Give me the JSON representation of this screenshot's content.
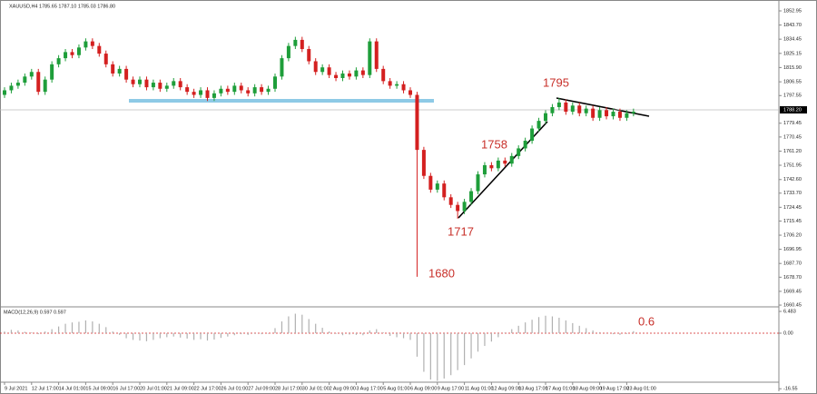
{
  "chart_data": [
    {
      "type": "candlestick",
      "title": "XAUUSD,H4 1785.65 1787.10 1785.03 1786.80",
      "categories": [
        "9 Jul 2021",
        null,
        null,
        null,
        "12 Jul 17:00",
        null,
        null,
        null,
        "14 Jul 01:00",
        null,
        null,
        null,
        "15 Jul 09:00",
        null,
        null,
        null,
        "16 Jul 17:00",
        null,
        null,
        null,
        "20 Jul 01:00",
        null,
        null,
        null,
        "21 Jul 09:00",
        null,
        null,
        null,
        "22 Jul 17:00",
        null,
        null,
        null,
        "26 Jul 01:00",
        null,
        null,
        null,
        "27 Jul 09:00",
        null,
        null,
        null,
        "28 Jul 17:00",
        null,
        null,
        null,
        "30 Jul 01:00",
        null,
        null,
        null,
        "2 Aug 09:00",
        null,
        null,
        null,
        "3 Aug 17:00",
        null,
        null,
        null,
        "5 Aug 01:00",
        null,
        null,
        null,
        "6 Aug 09:00",
        null,
        null,
        null,
        "9 Aug 17:00",
        null,
        null,
        null,
        "11 Aug 01:00",
        null,
        null,
        null,
        "12 Aug 09:00",
        null,
        null,
        null,
        "13 Aug 17:00",
        null,
        null,
        null,
        "17 Aug 01:00",
        null,
        null,
        null,
        "18 Aug 09:00",
        null,
        null,
        null,
        "19 Aug 17:00",
        null,
        null,
        null,
        "23 Aug 01:00",
        null
      ],
      "open": [
        1798,
        1801,
        1804,
        1806,
        1810,
        1813,
        1800,
        1808,
        1818,
        1822,
        1826,
        1824,
        1829,
        1833,
        1830,
        1825,
        1818,
        1812,
        1815,
        1808,
        1805,
        1808,
        1803,
        1806,
        1802,
        1804,
        1807,
        1803,
        1800,
        1798,
        1801,
        1796,
        1799,
        1802,
        1800,
        1804,
        1801,
        1799,
        1803,
        1800,
        1802,
        1810,
        1822,
        1830,
        1834,
        1828,
        1820,
        1813,
        1816,
        1811,
        1809,
        1812,
        1810,
        1814,
        1811,
        1833,
        1815,
        1807,
        1804,
        1805,
        1801,
        1798,
        1762,
        1745,
        1736,
        1740,
        1731,
        1726,
        1722,
        1728,
        1735,
        1746,
        1752,
        1750,
        1755,
        1753,
        1758,
        1763,
        1768,
        1776,
        1781,
        1786,
        1790,
        1793,
        1787,
        1791,
        1786,
        1789,
        1783,
        1788,
        1784,
        1787,
        1783,
        1786
      ],
      "high": [
        1803,
        1806,
        1808,
        1812,
        1815,
        1815,
        1810,
        1820,
        1824,
        1828,
        1828,
        1831,
        1835,
        1835,
        1832,
        1827,
        1820,
        1817,
        1817,
        1810,
        1810,
        1810,
        1808,
        1808,
        1806,
        1809,
        1809,
        1805,
        1802,
        1803,
        1803,
        1801,
        1804,
        1804,
        1806,
        1806,
        1803,
        1805,
        1805,
        1804,
        1812,
        1824,
        1832,
        1836,
        1836,
        1830,
        1822,
        1818,
        1818,
        1813,
        1814,
        1814,
        1816,
        1816,
        1835,
        1835,
        1817,
        1809,
        1807,
        1807,
        1803,
        1800,
        1764,
        1747,
        1742,
        1742,
        1733,
        1728,
        1730,
        1737,
        1748,
        1754,
        1754,
        1757,
        1757,
        1760,
        1765,
        1770,
        1778,
        1783,
        1788,
        1792,
        1796,
        1795,
        1793,
        1793,
        1791,
        1791,
        1790,
        1790,
        1789,
        1789,
        1788,
        1789
      ],
      "low": [
        1796,
        1799,
        1802,
        1804,
        1808,
        1798,
        1798,
        1806,
        1816,
        1820,
        1822,
        1822,
        1827,
        1828,
        1823,
        1816,
        1810,
        1810,
        1806,
        1803,
        1803,
        1801,
        1801,
        1800,
        1800,
        1802,
        1801,
        1798,
        1796,
        1796,
        1794,
        1794,
        1797,
        1798,
        1798,
        1799,
        1797,
        1797,
        1798,
        1798,
        1800,
        1808,
        1820,
        1828,
        1826,
        1818,
        1811,
        1811,
        1809,
        1807,
        1807,
        1808,
        1808,
        1809,
        1809,
        1813,
        1805,
        1802,
        1802,
        1799,
        1796,
        1679,
        1743,
        1734,
        1734,
        1729,
        1724,
        1717,
        1720,
        1726,
        1733,
        1744,
        1748,
        1748,
        1751,
        1751,
        1756,
        1761,
        1766,
        1774,
        1779,
        1784,
        1788,
        1785,
        1785,
        1784,
        1784,
        1781,
        1781,
        1782,
        1782,
        1781,
        1781,
        1784
      ],
      "close": [
        1801,
        1804,
        1806,
        1810,
        1813,
        1800,
        1808,
        1818,
        1822,
        1826,
        1824,
        1829,
        1833,
        1830,
        1825,
        1818,
        1812,
        1815,
        1808,
        1805,
        1808,
        1803,
        1806,
        1802,
        1804,
        1807,
        1803,
        1800,
        1798,
        1801,
        1796,
        1799,
        1802,
        1800,
        1804,
        1801,
        1799,
        1803,
        1800,
        1802,
        1810,
        1822,
        1830,
        1834,
        1828,
        1820,
        1813,
        1816,
        1811,
        1809,
        1812,
        1810,
        1814,
        1811,
        1833,
        1815,
        1807,
        1804,
        1805,
        1801,
        1798,
        1762,
        1745,
        1736,
        1740,
        1731,
        1726,
        1722,
        1728,
        1735,
        1746,
        1752,
        1750,
        1755,
        1753,
        1758,
        1763,
        1768,
        1776,
        1781,
        1786,
        1790,
        1793,
        1787,
        1791,
        1786,
        1789,
        1783,
        1788,
        1784,
        1787,
        1783,
        1786,
        1787
      ],
      "up_color": "#1e9e3a",
      "down_color": "#d42020",
      "ylim": [
        1659.9,
        1858.3
      ],
      "yticks": [
        1852.95,
        {
          "value": 1843.7,
          "label": "1843.70"
        },
        1834.45,
        1825.15,
        {
          "value": 1815.9,
          "label": "1815.90"
        },
        1806.55,
        1797.55,
        1779.45,
        1770.45,
        {
          "value": 1761.2,
          "label": "1761.20"
        },
        1751.95,
        {
          "value": 1742.6,
          "label": "1742.60"
        },
        {
          "value": 1733.7,
          "label": "1733.70"
        },
        1724.45,
        1715.45,
        {
          "value": 1706.2,
          "label": "1706.20"
        },
        1696.95,
        {
          "value": 1687.7,
          "label": "1687.70"
        },
        {
          "value": 1678.7,
          "label": "1678.70"
        },
        1669.45,
        1660.45
      ],
      "current_price": {
        "value": 1788.2,
        "label": "1788.20"
      },
      "annotations": [
        "1795",
        "1758",
        "1717",
        "1680"
      ],
      "grid": false
    },
    {
      "type": "bar",
      "title": "MACD(12,26,9) 0.597 0.597",
      "values": [
        0.5,
        1.0,
        0.8,
        0.4,
        0.2,
        -0.3,
        0.5,
        1.2,
        2.0,
        2.8,
        3.2,
        3.4,
        3.8,
        3.5,
        2.8,
        1.8,
        0.5,
        -0.5,
        -1.5,
        -2.0,
        -2.2,
        -2.4,
        -2.0,
        -1.5,
        -1.2,
        -1.0,
        -1.3,
        -1.6,
        -2.0,
        -1.8,
        -2.2,
        -1.9,
        -1.4,
        -1.0,
        -0.6,
        -0.3,
        -0.5,
        -0.2,
        -0.3,
        0.0,
        1.5,
        3.5,
        5.0,
        5.8,
        5.5,
        4.2,
        2.8,
        1.6,
        0.5,
        -0.2,
        -0.6,
        -0.4,
        -0.5,
        -0.6,
        0.8,
        1.2,
        0.2,
        -0.8,
        -1.2,
        -1.5,
        -2.0,
        -7.0,
        -11.5,
        -13.8,
        -14.2,
        -13.5,
        -12.5,
        -11.0,
        -9.5,
        -7.5,
        -5.5,
        -3.8,
        -2.5,
        -1.2,
        0.2,
        1.2,
        2.2,
        3.2,
        4.0,
        4.8,
        5.2,
        5.0,
        4.6,
        3.8,
        3.0,
        2.2,
        1.5,
        0.8,
        0.3,
        -0.1,
        -0.3,
        -0.5,
        -0.2,
        0.6
      ],
      "color": "#b0b0b0",
      "signal_color": "#d42020",
      "ylim": [
        -17.3,
        7.57
      ],
      "yticks": [
        6.483,
        {
          "value": 0,
          "label": "0.00"
        },
        -16.55
      ],
      "annotations": [
        "0.6"
      ]
    }
  ]
}
